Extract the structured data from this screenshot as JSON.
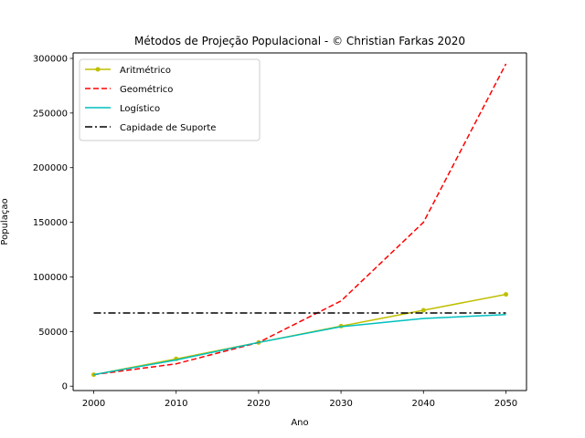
{
  "chart_data": {
    "type": "line",
    "title": "Métodos de Projeção Populacional - © Christian Farkas 2020",
    "xlabel": "Ano",
    "ylabel": "Populaçao",
    "xlim": [
      1997.5,
      2052.5
    ],
    "ylim": [
      -4000,
      305000
    ],
    "x_ticks": [
      2000,
      2010,
      2020,
      2030,
      2040,
      2050
    ],
    "y_ticks": [
      0,
      50000,
      100000,
      150000,
      200000,
      250000,
      300000
    ],
    "grid": false,
    "legend_position": "upper-left",
    "series": [
      {
        "name": "Aritmétrico",
        "color": "#bfbf00",
        "style": "solid-markers",
        "x": [
          2000,
          2010,
          2020,
          2030,
          2040,
          2050
        ],
        "y": [
          10500,
          25000,
          40000,
          55000,
          69500,
          84000
        ]
      },
      {
        "name": "Geométrico",
        "color": "#ff0000",
        "style": "dashed",
        "x": [
          2000,
          2010,
          2020,
          2030,
          2040,
          2050
        ],
        "y": [
          10500,
          20500,
          40000,
          78000,
          150000,
          295000
        ]
      },
      {
        "name": "Logístico",
        "color": "#00bfbf",
        "style": "solid",
        "x": [
          2000,
          2010,
          2020,
          2030,
          2040,
          2050
        ],
        "y": [
          10500,
          24000,
          40000,
          54500,
          62000,
          65500
        ]
      },
      {
        "name": "Capidade de Suporte",
        "color": "#000000",
        "style": "dashdot",
        "x": [
          2000,
          2050
        ],
        "y": [
          67000,
          67000
        ]
      }
    ]
  }
}
